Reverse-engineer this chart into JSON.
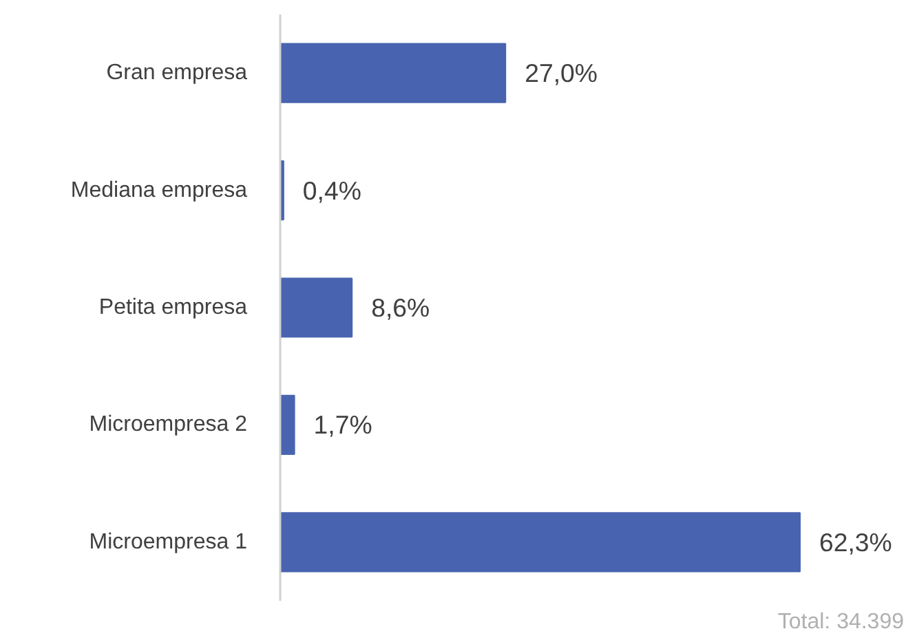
{
  "chart_data": {
    "type": "bar",
    "orientation": "horizontal",
    "categories": [
      "Gran empresa",
      "Mediana empresa",
      "Petita empresa",
      "Microempresa 2",
      "Microempresa 1"
    ],
    "values": [
      27.0,
      0.4,
      8.6,
      1.7,
      62.3
    ],
    "value_labels": [
      "27,0%",
      "0,4%",
      "8,6%",
      "1,7%",
      "62,3%"
    ],
    "color": "#4864b0",
    "grid": false,
    "annotations": [
      "Total: 34.399"
    ]
  }
}
